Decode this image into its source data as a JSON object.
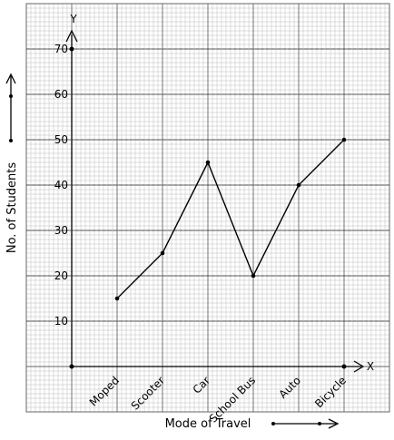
{
  "chart_data": {
    "type": "line",
    "categories": [
      "Moped",
      "Scooter",
      "Car",
      "School Bus",
      "Auto",
      "Bicycle"
    ],
    "values": [
      15,
      25,
      45,
      20,
      40,
      50
    ],
    "title": "",
    "xlabel": "Mode of Travel",
    "ylabel": "No. of Students",
    "ylim": [
      0,
      70
    ],
    "yticks": [
      10,
      20,
      30,
      40,
      50,
      60,
      70
    ],
    "x_axis_name": "X",
    "y_axis_name": "Y",
    "grid": true
  }
}
